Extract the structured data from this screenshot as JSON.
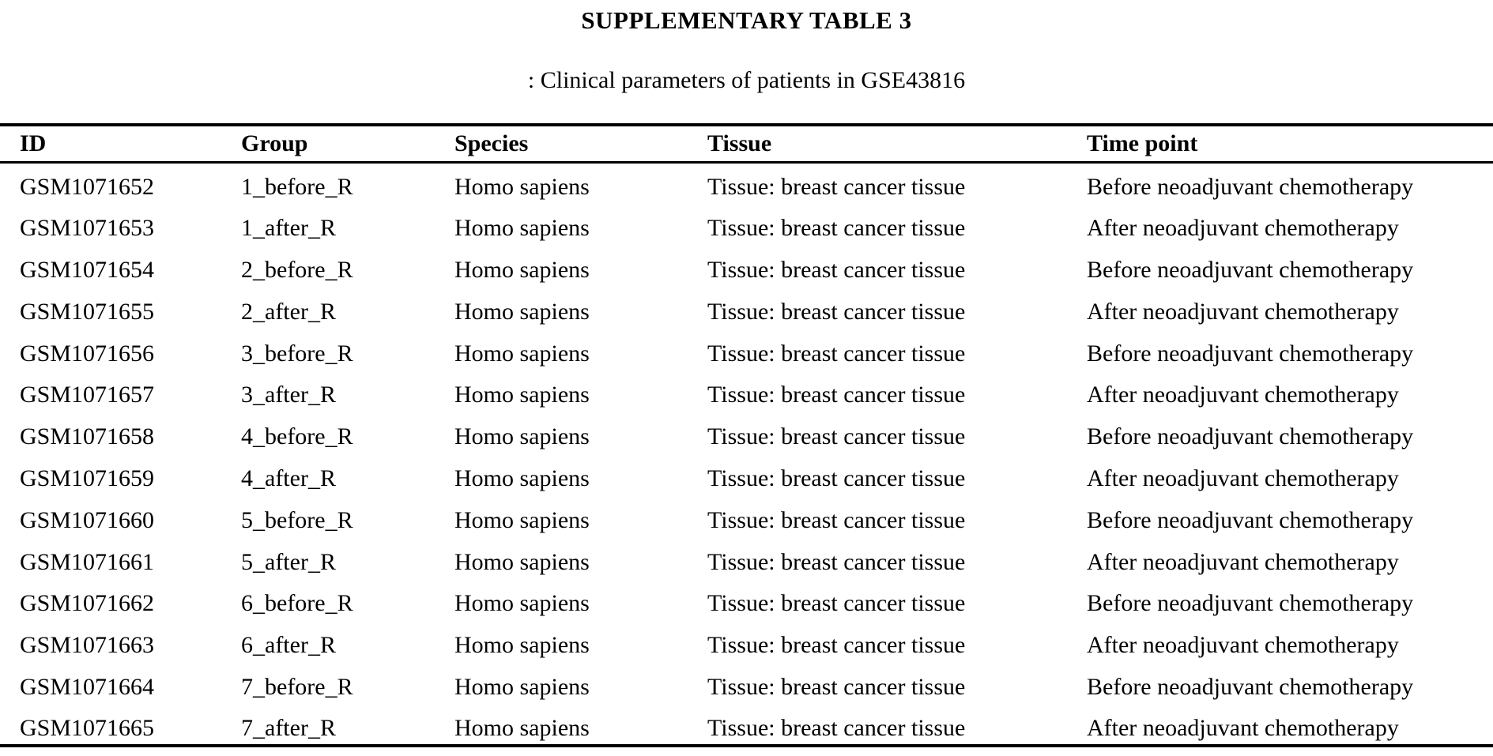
{
  "document": {
    "title": "SUPPLEMENTARY TABLE 3",
    "caption": ": Clinical parameters of patients in GSE43816"
  },
  "table": {
    "columns": [
      "ID",
      "Group",
      "Species",
      "Tissue",
      "Time point"
    ],
    "rows": [
      {
        "id": "GSM1071652",
        "group": "1_before_R",
        "species": "Homo sapiens",
        "tissue": "Tissue: breast cancer tissue",
        "time_point": "Before neoadjuvant chemotherapy"
      },
      {
        "id": "GSM1071653",
        "group": "1_after_R",
        "species": "Homo sapiens",
        "tissue": "Tissue: breast cancer tissue",
        "time_point": "After neoadjuvant chemotherapy"
      },
      {
        "id": "GSM1071654",
        "group": "2_before_R",
        "species": "Homo sapiens",
        "tissue": "Tissue: breast cancer tissue",
        "time_point": "Before neoadjuvant chemotherapy"
      },
      {
        "id": "GSM1071655",
        "group": "2_after_R",
        "species": "Homo sapiens",
        "tissue": "Tissue: breast cancer tissue",
        "time_point": "After neoadjuvant chemotherapy"
      },
      {
        "id": "GSM1071656",
        "group": "3_before_R",
        "species": "Homo sapiens",
        "tissue": "Tissue: breast cancer tissue",
        "time_point": "Before neoadjuvant chemotherapy"
      },
      {
        "id": "GSM1071657",
        "group": "3_after_R",
        "species": "Homo sapiens",
        "tissue": "Tissue: breast cancer tissue",
        "time_point": "After neoadjuvant chemotherapy"
      },
      {
        "id": "GSM1071658",
        "group": "4_before_R",
        "species": "Homo sapiens",
        "tissue": "Tissue: breast cancer tissue",
        "time_point": "Before neoadjuvant chemotherapy"
      },
      {
        "id": "GSM1071659",
        "group": "4_after_R",
        "species": "Homo sapiens",
        "tissue": "Tissue: breast cancer tissue",
        "time_point": "After neoadjuvant chemotherapy"
      },
      {
        "id": "GSM1071660",
        "group": "5_before_R",
        "species": "Homo sapiens",
        "tissue": "Tissue: breast cancer tissue",
        "time_point": "Before neoadjuvant chemotherapy"
      },
      {
        "id": "GSM1071661",
        "group": "5_after_R",
        "species": "Homo sapiens",
        "tissue": "Tissue: breast cancer tissue",
        "time_point": "After neoadjuvant chemotherapy"
      },
      {
        "id": "GSM1071662",
        "group": "6_before_R",
        "species": "Homo sapiens",
        "tissue": "Tissue: breast cancer tissue",
        "time_point": "Before neoadjuvant chemotherapy"
      },
      {
        "id": "GSM1071663",
        "group": "6_after_R",
        "species": "Homo sapiens",
        "tissue": "Tissue: breast cancer tissue",
        "time_point": "After neoadjuvant chemotherapy"
      },
      {
        "id": "GSM1071664",
        "group": "7_before_R",
        "species": "Homo sapiens",
        "tissue": "Tissue: breast cancer tissue",
        "time_point": "Before neoadjuvant chemotherapy"
      },
      {
        "id": "GSM1071665",
        "group": "7_after_R",
        "species": "Homo sapiens",
        "tissue": "Tissue: breast cancer tissue",
        "time_point": "After neoadjuvant chemotherapy"
      }
    ]
  },
  "colors": {
    "text": "#000000",
    "background": "#ffffff",
    "rule": "#000000"
  }
}
